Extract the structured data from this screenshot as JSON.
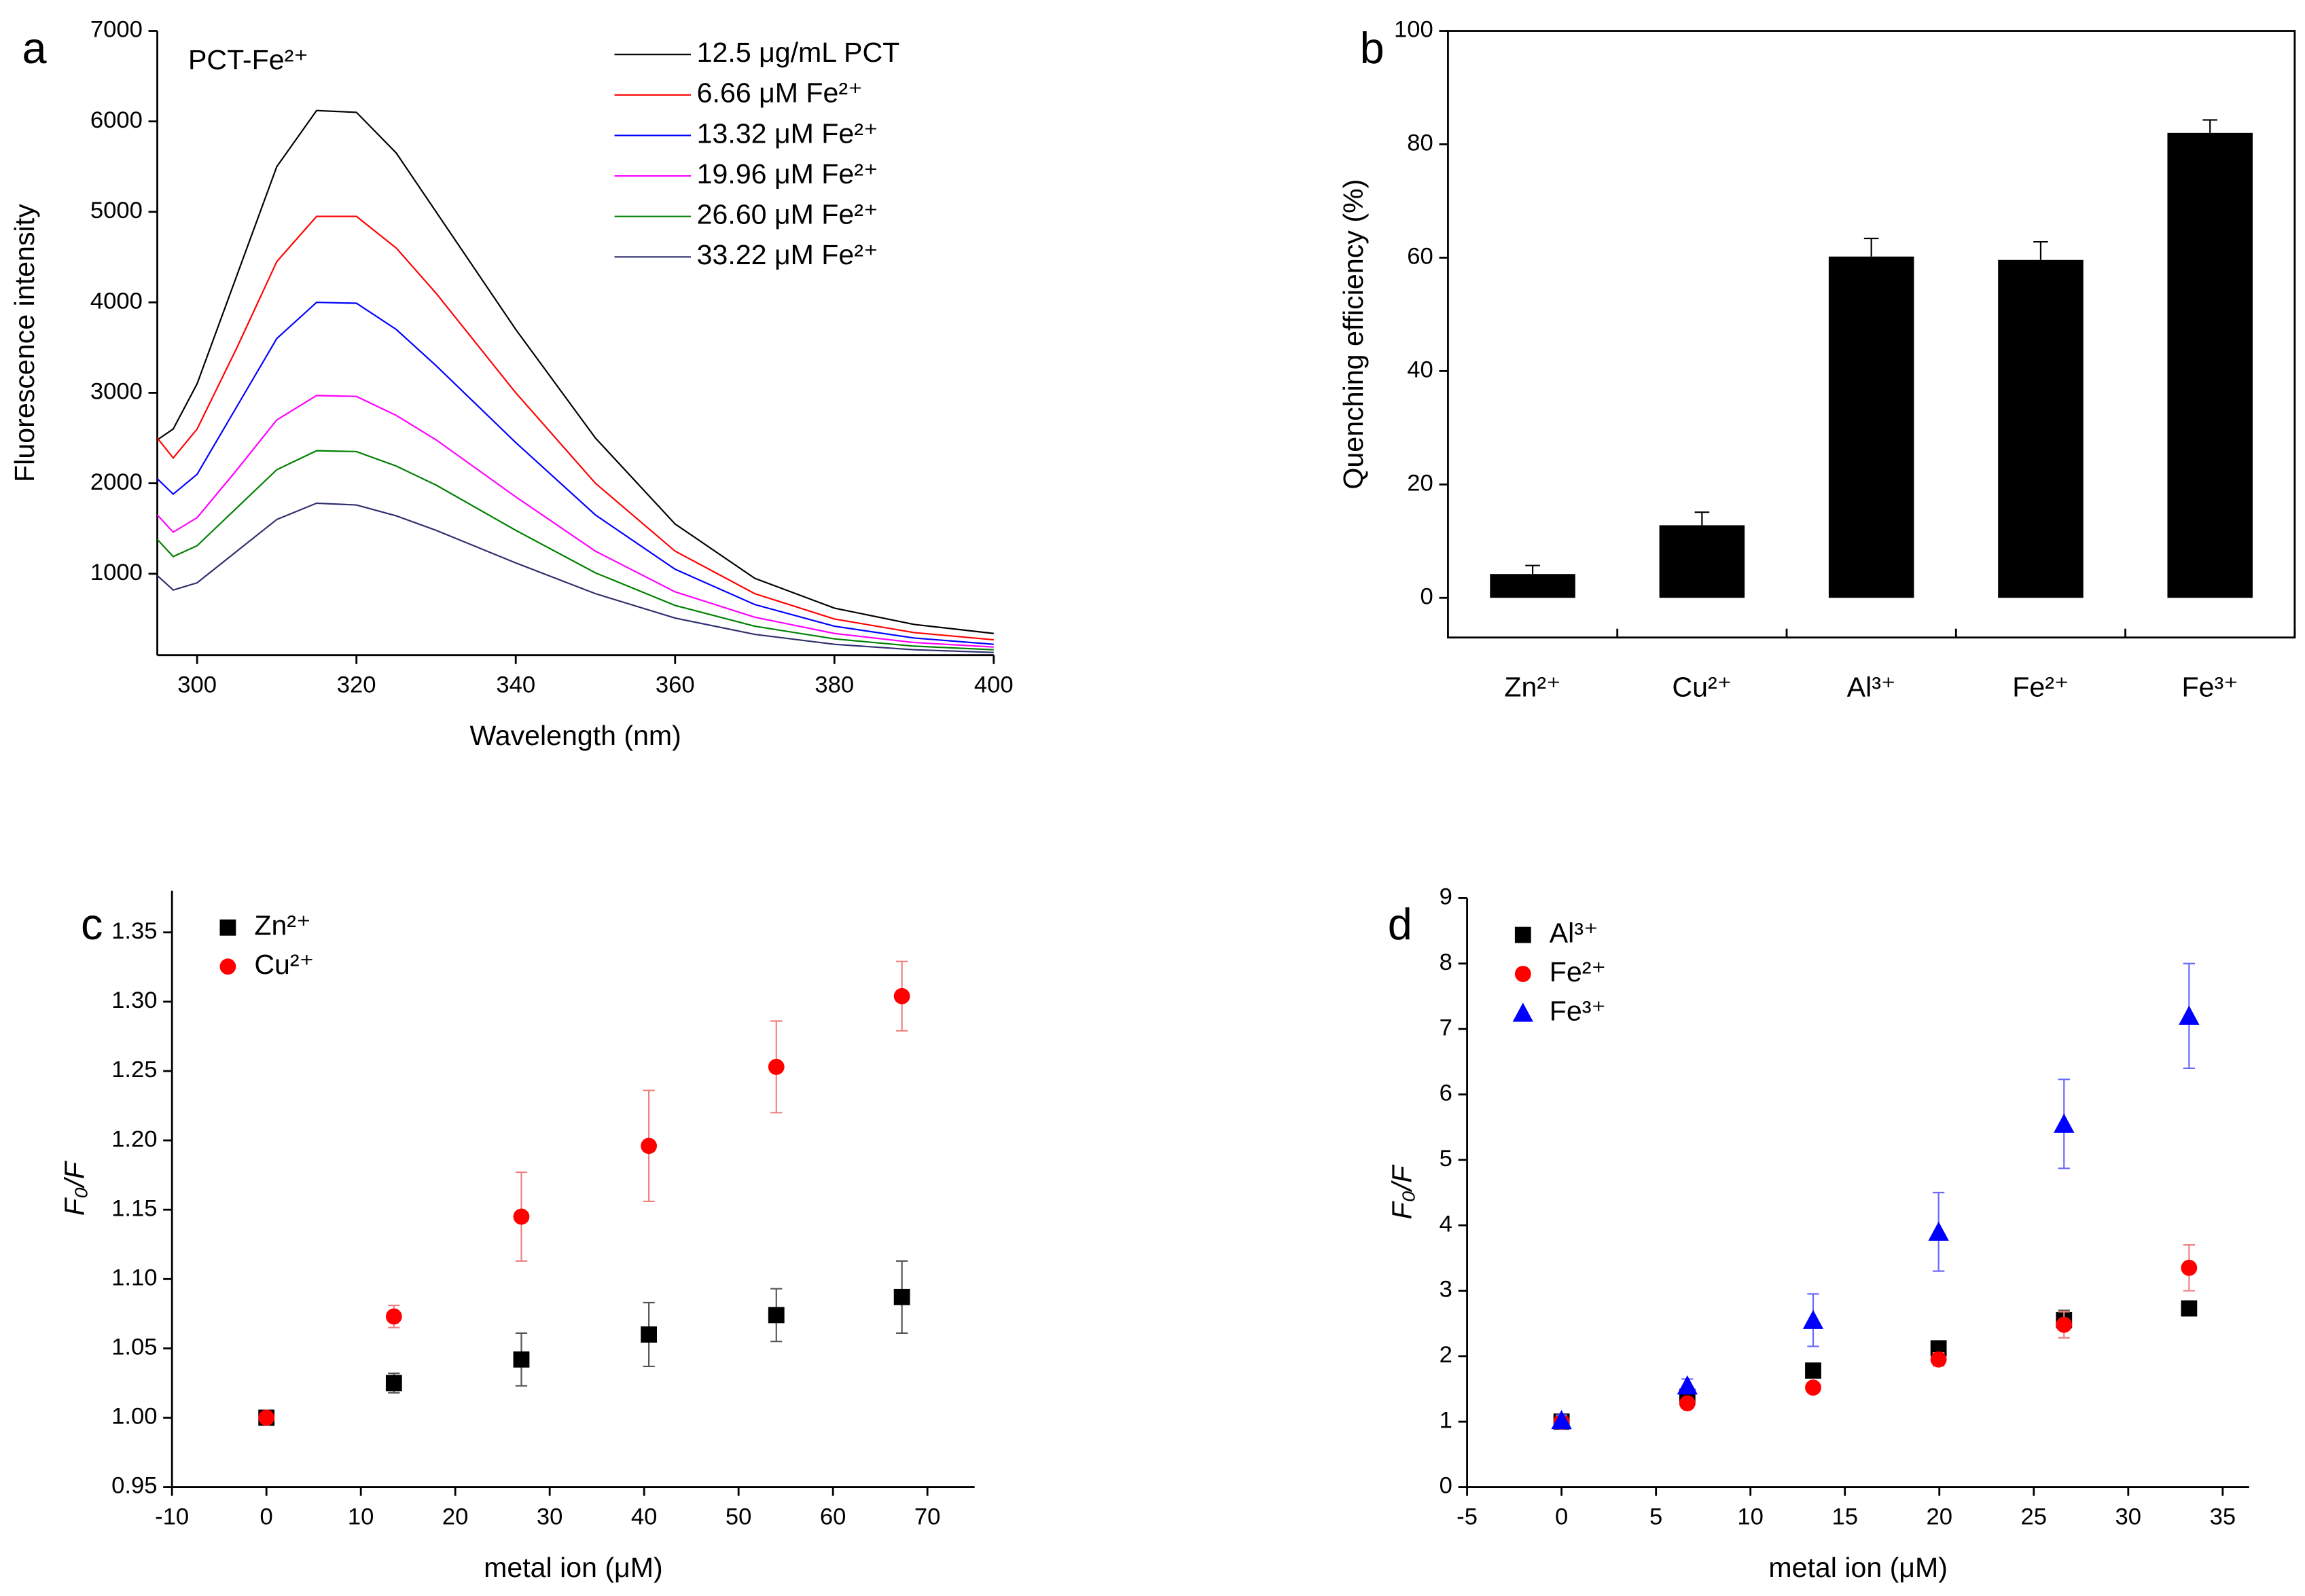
{
  "chart_data": [
    {
      "type": "line",
      "label": "a",
      "annotation": "PCT-Fe²⁺",
      "xlabel": "Wavelength (nm)",
      "ylabel": "Fluorescence intensity",
      "x": [
        295,
        297,
        300,
        305,
        310,
        315,
        320,
        325,
        330,
        340,
        350,
        360,
        370,
        380,
        390,
        400
      ],
      "xlim": [
        295,
        400
      ],
      "xticks": [
        300,
        320,
        340,
        360,
        380,
        400
      ],
      "ylim": [
        100,
        7000
      ],
      "yticks": [
        1000,
        2000,
        3000,
        4000,
        5000,
        6000,
        7000
      ],
      "legend": "upper right",
      "series": [
        {
          "name": "12.5 μg/mL PCT",
          "color": "#000000",
          "values": [
            2480,
            2600,
            3100,
            4300,
            5500,
            6120,
            6100,
            5650,
            5000,
            3700,
            2500,
            1550,
            950,
            620,
            440,
            340
          ]
        },
        {
          "name": "6.66 μM Fe²⁺",
          "color": "#ff0000",
          "values": [
            2500,
            2280,
            2600,
            3500,
            4450,
            4950,
            4950,
            4600,
            4100,
            3000,
            2000,
            1250,
            780,
            500,
            350,
            270
          ]
        },
        {
          "name": "13.32 μM Fe²⁺",
          "color": "#0000ff",
          "values": [
            2050,
            1880,
            2100,
            2850,
            3600,
            4000,
            3990,
            3700,
            3300,
            2450,
            1650,
            1050,
            660,
            420,
            290,
            220
          ]
        },
        {
          "name": "19.96 μM Fe²⁺",
          "color": "#ff00ff",
          "values": [
            1650,
            1460,
            1620,
            2150,
            2700,
            2970,
            2960,
            2750,
            2480,
            1850,
            1250,
            800,
            520,
            340,
            240,
            190
          ]
        },
        {
          "name": "26.60 μM Fe²⁺",
          "color": "#008000",
          "values": [
            1380,
            1190,
            1310,
            1730,
            2150,
            2360,
            2350,
            2190,
            1980,
            1480,
            1010,
            650,
            420,
            280,
            200,
            160
          ]
        },
        {
          "name": "33.22 μM Fe²⁺",
          "color": "#2f2f6e",
          "values": [
            980,
            820,
            900,
            1250,
            1600,
            1780,
            1760,
            1640,
            1480,
            1120,
            780,
            510,
            330,
            220,
            160,
            130
          ]
        }
      ]
    },
    {
      "type": "bar",
      "label": "b",
      "ylabel": "Quenching efficiency (%)",
      "frame": true,
      "categories": [
        "Zn²⁺",
        "Cu²⁺",
        "Al³⁺",
        "Fe²⁺",
        "Fe³⁺"
      ],
      "values": [
        4.2,
        12.8,
        60.2,
        59.6,
        82
      ],
      "errors": [
        1.5,
        2.3,
        3.2,
        3.2,
        2.3
      ],
      "color": "#000000",
      "ylim": [
        -7,
        100
      ],
      "yticks": [
        0,
        20,
        40,
        60,
        80,
        100
      ]
    },
    {
      "type": "scatter",
      "label": "c",
      "xlabel": "metal ion (μM)",
      "ylabel": "F₀/F",
      "xlim": [
        -10,
        75
      ],
      "xticks": [
        -10,
        0,
        10,
        20,
        30,
        40,
        50,
        60,
        70
      ],
      "ylim": [
        0.95,
        1.38
      ],
      "yticks": [
        {
          "value": 0.95,
          "label": "0.95"
        },
        {
          "value": 1,
          "label": "1.00"
        },
        {
          "value": 1.05,
          "label": "1.05"
        },
        {
          "value": 1.1,
          "label": "1.10"
        },
        {
          "value": 1.15,
          "label": "1.15"
        },
        {
          "value": 1.2,
          "label": "1.20"
        },
        {
          "value": 1.25,
          "label": "1.25"
        },
        {
          "value": 1.3,
          "label": "1.30"
        },
        {
          "value": 1.35,
          "label": "1.35"
        }
      ],
      "legend": "upper left",
      "x": [
        0,
        13.5,
        27,
        40.5,
        54,
        67.3
      ],
      "series": [
        {
          "name": "Zn²⁺",
          "color": "#000000",
          "marker": "square",
          "values": [
            1.0,
            1.025,
            1.042,
            1.06,
            1.074,
            1.087
          ],
          "errors": [
            0.002,
            0.007,
            0.019,
            0.023,
            0.019,
            0.026
          ]
        },
        {
          "name": "Cu²⁺",
          "color": "#ff0000",
          "marker": "circle",
          "values": [
            1.0,
            1.073,
            1.145,
            1.196,
            1.253,
            1.304
          ],
          "errors": [
            0.003,
            0.008,
            0.032,
            0.04,
            0.033,
            0.025
          ]
        }
      ]
    },
    {
      "type": "scatter",
      "label": "d",
      "xlabel": "metal ion (μM)",
      "ylabel": "F₀/F",
      "xlim": [
        -5,
        36.4
      ],
      "xticks": [
        -5,
        0,
        5,
        10,
        15,
        20,
        25,
        30,
        35
      ],
      "ylim": [
        0,
        9
      ],
      "yticks": [
        0,
        1,
        2,
        3,
        4,
        5,
        6,
        7,
        8,
        9
      ],
      "legend": "upper left",
      "x": [
        0,
        6.66,
        13.32,
        19.96,
        26.6,
        33.22
      ],
      "series": [
        {
          "name": "Al³⁺",
          "color": "#000000",
          "marker": "square",
          "values": [
            1.0,
            1.38,
            1.78,
            2.12,
            2.55,
            2.73
          ],
          "errors": [
            0.03,
            0.05,
            0.06,
            0.07,
            0.15,
            0.1
          ]
        },
        {
          "name": "Fe²⁺",
          "color": "#ff0000",
          "marker": "circle",
          "values": [
            1.0,
            1.28,
            1.52,
            1.95,
            2.48,
            3.35
          ],
          "errors": [
            0.05,
            0.05,
            0.07,
            0.1,
            0.2,
            0.35
          ]
        },
        {
          "name": "Fe³⁺",
          "color": "#0000ff",
          "marker": "triangle",
          "values": [
            1.02,
            1.55,
            2.55,
            3.9,
            5.55,
            7.2
          ],
          "errors": [
            0.08,
            0.1,
            0.4,
            0.6,
            0.68,
            0.8
          ]
        }
      ]
    }
  ]
}
